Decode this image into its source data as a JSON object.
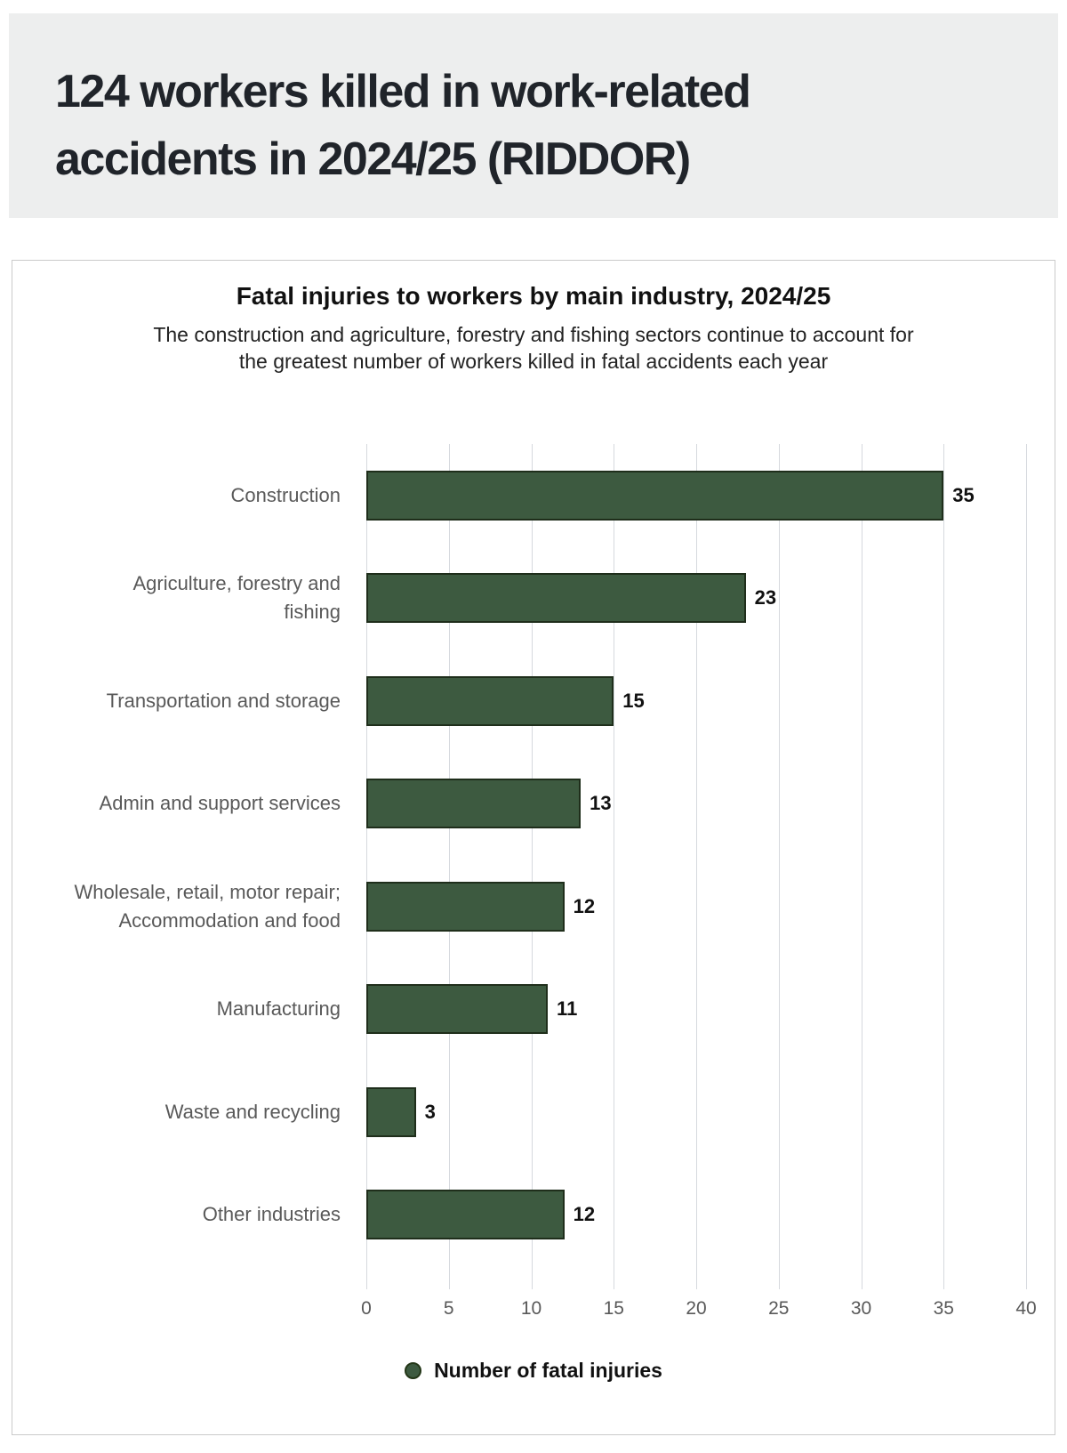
{
  "header": {
    "title_lines": [
      "124 workers killed in work-related",
      "accidents in 2024/25 (RIDDOR)"
    ],
    "background_color": "#edeeee",
    "text_color": "#20242a"
  },
  "chart_data": {
    "type": "bar",
    "orientation": "horizontal",
    "title": "Fatal injuries to workers by main industry, 2024/25",
    "subtitle": "The construction and agriculture, forestry and fishing sectors continue to account for the greatest number of workers killed in fatal accidents each year",
    "subtitle_lines": [
      "The construction and agriculture, forestry and fishing sectors continue to account for",
      "the greatest number of workers killed in fatal accidents each year"
    ],
    "categories": [
      "Construction",
      "Agriculture, forestry and fishing",
      "Transportation and storage",
      "Admin and support services",
      "Wholesale, retail, motor repair; Accommodation and food",
      "Manufacturing",
      "Waste and recycling",
      "Other industries"
    ],
    "values": [
      35,
      23,
      15,
      13,
      12,
      11,
      3,
      12
    ],
    "xlabel": "",
    "ylabel": "",
    "xlim": [
      0,
      40
    ],
    "xticks": [
      0,
      5,
      10,
      15,
      20,
      25,
      30,
      35,
      40
    ],
    "grid": true,
    "data_labels_shown": true,
    "legend": {
      "marker": "circle",
      "label": "Number of fatal injuries",
      "position": "bottom"
    },
    "colors": {
      "bar_fill": "#3d5a40",
      "bar_border": "#1f2e1b",
      "gridline": "#d6d9de",
      "category_label": "#595959",
      "tick_label": "#595959",
      "value_label": "#111111"
    }
  }
}
